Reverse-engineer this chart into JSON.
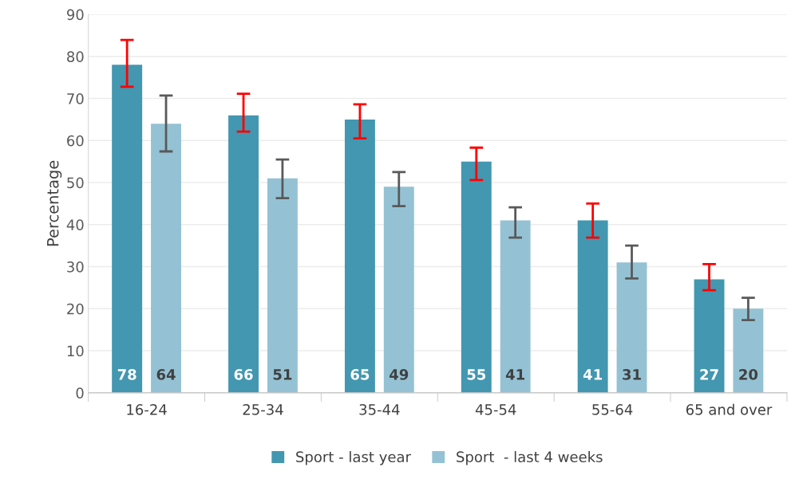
{
  "chart_data": {
    "type": "bar",
    "ylabel": "Percentage",
    "categories": [
      "16-24",
      "25-34",
      "35-44",
      "45-54",
      "55-64",
      "65 and over"
    ],
    "series": [
      {
        "name": "Sport - last year",
        "color": "#4397b0",
        "values": [
          78,
          66,
          65,
          55,
          41,
          27
        ],
        "errors": [
          [
            72.8,
            83.9
          ],
          [
            62.1,
            71.1
          ],
          [
            60.5,
            68.6
          ],
          [
            50.6,
            58.3
          ],
          [
            36.9,
            45.0
          ],
          [
            24.4,
            30.6
          ]
        ]
      },
      {
        "name": "Sport  - last 4 weeks",
        "color": "#94c2d4",
        "values": [
          64,
          51,
          49,
          41,
          31,
          20
        ],
        "errors": [
          [
            57.4,
            70.7
          ],
          [
            46.3,
            55.5
          ],
          [
            44.4,
            52.5
          ],
          [
            36.9,
            44.1
          ],
          [
            27.2,
            35.0
          ],
          [
            17.3,
            22.6
          ]
        ]
      }
    ],
    "ylim": [
      0,
      90
    ],
    "yticks": [
      0,
      10,
      20,
      30,
      40,
      50,
      60,
      70,
      80,
      90
    ],
    "grid": "y",
    "legend": "bottom",
    "data_labels": true
  }
}
